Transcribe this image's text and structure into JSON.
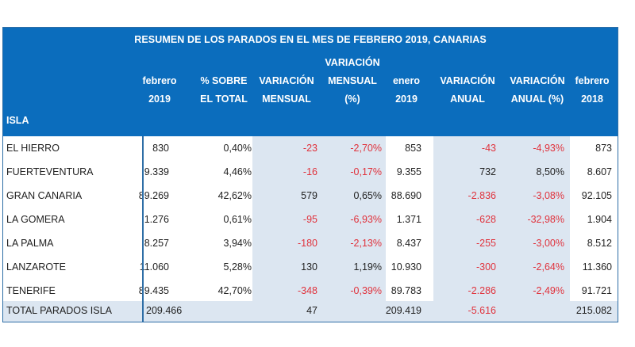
{
  "table": {
    "title": "RESUMEN DE LOS PARADOS EN EL MES DE FEBRERO 2019, CANARIAS",
    "row_header": "ISLA",
    "columns": [
      {
        "line1": "",
        "line2": "febrero",
        "line3": "2019"
      },
      {
        "line1": "",
        "line2": "% SOBRE",
        "line3": "EL TOTAL"
      },
      {
        "line1": "",
        "line2": "VARIACIÓN",
        "line3": "MENSUAL"
      },
      {
        "line1": "VARIACIÓN",
        "line2": "MENSUAL",
        "line3": "(%)"
      },
      {
        "line1": "",
        "line2": "enero",
        "line3": "2019"
      },
      {
        "line1": "",
        "line2": "VARIACIÓN",
        "line3": "ANUAL"
      },
      {
        "line1": "",
        "line2": "VARIACIÓN",
        "line3": "ANUAL (%)"
      },
      {
        "line1": "",
        "line2": "febrero",
        "line3": "2018"
      }
    ],
    "rows": [
      {
        "isla": "EL HIERRO",
        "values": [
          "830",
          "0,40%",
          "-23",
          "-2,70%",
          "853",
          "-43",
          "-4,93%",
          "873"
        ]
      },
      {
        "isla": "FUERTEVENTURA",
        "values": [
          "9.339",
          "4,46%",
          "-16",
          "-0,17%",
          "9.355",
          "732",
          "8,50%",
          "8.607"
        ]
      },
      {
        "isla": "GRAN CANARIA",
        "values": [
          "89.269",
          "42,62%",
          "579",
          "0,65%",
          "88.690",
          "-2.836",
          "-3,08%",
          "92.105"
        ]
      },
      {
        "isla": "LA GOMERA",
        "values": [
          "1.276",
          "0,61%",
          "-95",
          "-6,93%",
          "1.371",
          "-628",
          "-32,98%",
          "1.904"
        ]
      },
      {
        "isla": "LA PALMA",
        "values": [
          "8.257",
          "3,94%",
          "-180",
          "-2,13%",
          "8.437",
          "-255",
          "-3,00%",
          "8.512"
        ]
      },
      {
        "isla": "LANZAROTE",
        "values": [
          "11.060",
          "5,28%",
          "130",
          "1,19%",
          "10.930",
          "-300",
          "-2,64%",
          "11.360"
        ]
      },
      {
        "isla": "TENERIFE",
        "values": [
          "89.435",
          "42,70%",
          "-348",
          "-0,39%",
          "89.783",
          "-2.286",
          "-2,49%",
          "91.721"
        ]
      }
    ],
    "total": {
      "isla": "TOTAL PARADOS ISLA",
      "values": [
        "209.466",
        "",
        "47",
        "",
        "209.419",
        "-5.616",
        "",
        "215.082"
      ]
    },
    "colors": {
      "header_bg": "#0b6dbd",
      "shade": "#dce6f1",
      "negative": "#e0323c",
      "border": "#2e6ea6"
    }
  }
}
